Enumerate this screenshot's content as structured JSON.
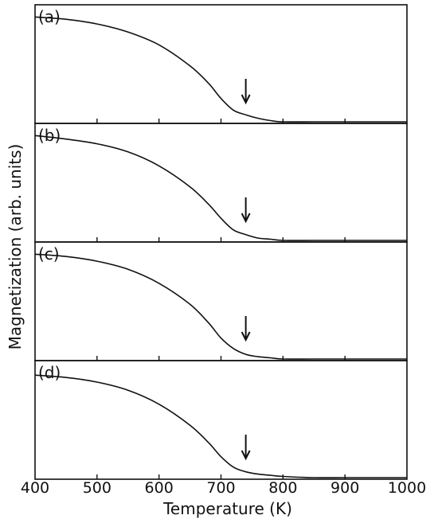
{
  "chart_data": {
    "type": "line",
    "xlabel": "Temperature (K)",
    "ylabel": "Magnetization (arb. units)",
    "xlim": [
      400,
      1000
    ],
    "xticks": [
      "400",
      "500",
      "600",
      "700",
      "800",
      "900",
      "1000"
    ],
    "grid": false,
    "panels": [
      {
        "label": "(a)",
        "arrow_x": 740,
        "series": [
          {
            "x": [
              400,
              450,
              500,
              550,
              600,
              650,
              680,
              700,
              720,
              740,
              760,
              780,
              800,
              850,
              900,
              950,
              1000
            ],
            "y": [
              0.9,
              0.88,
              0.84,
              0.77,
              0.66,
              0.48,
              0.33,
              0.2,
              0.1,
              0.06,
              0.03,
              0.01,
              0.0,
              0.0,
              0.0,
              0.0,
              0.0
            ]
          }
        ]
      },
      {
        "label": "(b)",
        "arrow_x": 740,
        "series": [
          {
            "x": [
              400,
              450,
              500,
              550,
              600,
              650,
              680,
              700,
              720,
              740,
              760,
              780,
              800,
              850,
              900,
              950,
              1000
            ],
            "y": [
              0.9,
              0.87,
              0.83,
              0.76,
              0.64,
              0.46,
              0.31,
              0.19,
              0.09,
              0.05,
              0.02,
              0.01,
              0.0,
              0.0,
              0.0,
              0.0,
              0.0
            ]
          }
        ]
      },
      {
        "label": "(c)",
        "arrow_x": 740,
        "series": [
          {
            "x": [
              400,
              450,
              500,
              550,
              600,
              650,
              680,
              700,
              720,
              740,
              760,
              780,
              800,
              850,
              900,
              950,
              1000
            ],
            "y": [
              0.9,
              0.88,
              0.84,
              0.77,
              0.65,
              0.47,
              0.31,
              0.18,
              0.09,
              0.04,
              0.02,
              0.01,
              0.0,
              0.0,
              0.0,
              0.0,
              0.0
            ]
          }
        ]
      },
      {
        "label": "(d)",
        "arrow_x": 740,
        "series": [
          {
            "x": [
              400,
              450,
              500,
              550,
              600,
              650,
              680,
              700,
              720,
              740,
              760,
              780,
              800,
              850,
              900,
              950,
              1000
            ],
            "y": [
              0.88,
              0.86,
              0.82,
              0.75,
              0.63,
              0.45,
              0.3,
              0.18,
              0.09,
              0.05,
              0.03,
              0.02,
              0.01,
              0.0,
              0.0,
              0.0,
              0.0
            ]
          }
        ]
      }
    ]
  }
}
